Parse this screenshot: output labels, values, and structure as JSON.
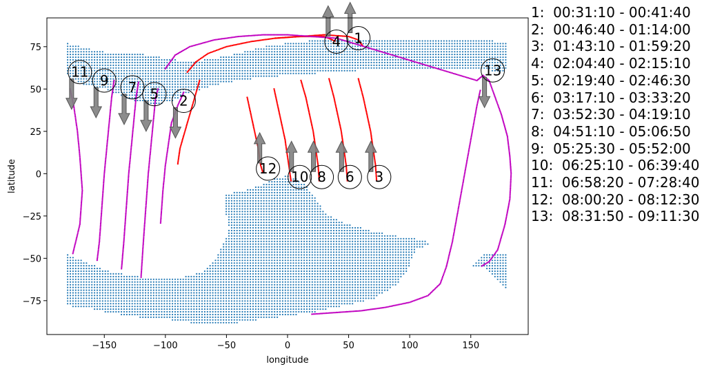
{
  "chart_data": {
    "type": "scatter",
    "title": "",
    "xlabel": "longitude",
    "ylabel": "latitude",
    "xlim": [
      -197,
      197
    ],
    "ylim": [
      -95,
      92
    ],
    "xticks": [
      -150,
      -100,
      -50,
      0,
      50,
      100,
      150
    ],
    "yticks": [
      -75,
      -50,
      -25,
      0,
      25,
      50,
      75
    ],
    "xtick_labels": [
      "−150",
      "−100",
      "−50",
      "0",
      "50",
      "100",
      "150"
    ],
    "ytick_labels": [
      "−75",
      "−50",
      "−25",
      "0",
      "25",
      "50",
      "75"
    ],
    "grid": false,
    "colors": {
      "coverage": "#1f77b4",
      "track_red": "#ff0000",
      "track_magenta": "#c000c0",
      "arrow": "#808080"
    },
    "coverage_region": {
      "description_units": "lon/lat polygons of blue point grid",
      "north": [
        [
          -180,
          77
        ],
        [
          -170,
          75
        ],
        [
          -150,
          72
        ],
        [
          -130,
          71
        ],
        [
          -110,
          70
        ],
        [
          -100,
          68
        ],
        [
          -90,
          67
        ],
        [
          -80,
          66
        ],
        [
          -60,
          68
        ],
        [
          -40,
          71
        ],
        [
          -25,
          74
        ],
        [
          -20,
          75
        ],
        [
          -10,
          76
        ],
        [
          0,
          77
        ],
        [
          10,
          78
        ],
        [
          30,
          79
        ],
        [
          60,
          79
        ],
        [
          90,
          79
        ],
        [
          120,
          79
        ],
        [
          150,
          79
        ],
        [
          180,
          78
        ],
        [
          180,
          62
        ],
        [
          175,
          60
        ],
        [
          170,
          60
        ],
        [
          163,
          62
        ],
        [
          150,
          62
        ],
        [
          120,
          62
        ],
        [
          90,
          62
        ],
        [
          60,
          61
        ],
        [
          40,
          60
        ],
        [
          20,
          59
        ],
        [
          0,
          58
        ],
        [
          -20,
          57
        ],
        [
          -40,
          55
        ],
        [
          -60,
          52
        ],
        [
          -80,
          48
        ],
        [
          -90,
          44
        ],
        [
          -100,
          42
        ],
        [
          -110,
          40
        ],
        [
          -120,
          42
        ],
        [
          -130,
          44
        ],
        [
          -140,
          47
        ],
        [
          -150,
          50
        ],
        [
          -165,
          52
        ],
        [
          -175,
          55
        ],
        [
          -180,
          58
        ]
      ],
      "south": [
        [
          -50,
          -12
        ],
        [
          -35,
          -10
        ],
        [
          -20,
          -6
        ],
        [
          -10,
          -3
        ],
        [
          0,
          -1
        ],
        [
          8,
          -3
        ],
        [
          15,
          -7
        ],
        [
          20,
          -12
        ],
        [
          25,
          -17
        ],
        [
          30,
          -22
        ],
        [
          35,
          -25
        ],
        [
          45,
          -29
        ],
        [
          55,
          -31
        ],
        [
          70,
          -34
        ],
        [
          90,
          -37
        ],
        [
          100,
          -38
        ],
        [
          110,
          -39
        ],
        [
          118,
          -41
        ],
        [
          105,
          -45
        ],
        [
          102,
          -50
        ],
        [
          100,
          -55
        ],
        [
          95,
          -60
        ],
        [
          90,
          -65
        ],
        [
          80,
          -70
        ],
        [
          70,
          -74
        ],
        [
          60,
          -76
        ],
        [
          40,
          -79
        ],
        [
          20,
          -82
        ],
        [
          0,
          -84
        ],
        [
          -20,
          -86
        ],
        [
          -40,
          -88
        ],
        [
          -60,
          -88
        ],
        [
          -80,
          -88
        ],
        [
          -100,
          -86
        ],
        [
          -120,
          -85
        ],
        [
          -140,
          -83
        ],
        [
          -160,
          -80
        ],
        [
          -180,
          -78
        ],
        [
          -180,
          -48
        ],
        [
          -165,
          -52
        ],
        [
          -150,
          -57
        ],
        [
          -130,
          -60
        ],
        [
          -110,
          -62
        ],
        [
          -90,
          -62
        ],
        [
          -70,
          -58
        ],
        [
          -60,
          -52
        ],
        [
          -55,
          -45
        ],
        [
          -50,
          -38
        ],
        [
          -48,
          -32
        ],
        [
          -50,
          -25
        ],
        [
          -52,
          -18
        ]
      ],
      "east_strip": [
        [
          150,
          -55
        ],
        [
          160,
          -48
        ],
        [
          180,
          -48
        ],
        [
          180,
          -68
        ],
        [
          175,
          -66
        ],
        [
          165,
          -58
        ],
        [
          160,
          -55
        ]
      ]
    },
    "series": [
      {
        "id": "1",
        "color": "red",
        "label_at": [
          58,
          80
        ],
        "arrow": "up",
        "points": [
          [
            -82,
            60
          ],
          [
            -75,
            66
          ],
          [
            -65,
            71
          ],
          [
            -50,
            75
          ],
          [
            -30,
            78
          ],
          [
            -10,
            80
          ],
          [
            10,
            81
          ],
          [
            30,
            82
          ],
          [
            50,
            81
          ],
          [
            58,
            79
          ],
          [
            62,
            75
          ]
        ]
      },
      {
        "id": "2",
        "color": "red",
        "label_at": [
          -85,
          43
        ],
        "arrow": "down",
        "points": [
          [
            -72,
            55
          ],
          [
            -76,
            45
          ],
          [
            -80,
            35
          ],
          [
            -84,
            25
          ],
          [
            -88,
            15
          ],
          [
            -90,
            5
          ]
        ]
      },
      {
        "id": "3",
        "color": "red",
        "label_at": [
          75,
          -2
        ],
        "arrow": "up",
        "points": [
          [
            58,
            56
          ],
          [
            62,
            45
          ],
          [
            65,
            35
          ],
          [
            68,
            25
          ],
          [
            70,
            15
          ],
          [
            72,
            5
          ],
          [
            73,
            -5
          ]
        ]
      },
      {
        "id": "4",
        "color": "red",
        "label_at": [
          40,
          78
        ],
        "arrow": "up",
        "points": [
          [
            -10,
            80
          ],
          [
            10,
            81
          ],
          [
            30,
            81
          ],
          [
            40,
            78
          ]
        ]
      },
      {
        "id": "5",
        "color": "magenta",
        "label_at": [
          -109,
          47
        ],
        "arrow": "down",
        "points": [
          [
            -106,
            50
          ],
          [
            -108,
            45
          ],
          [
            -110,
            30
          ],
          [
            -112,
            15
          ],
          [
            -114,
            0
          ],
          [
            -116,
            -20
          ],
          [
            -118,
            -40
          ],
          [
            -120,
            -62
          ]
        ]
      },
      {
        "id": "6",
        "color": "red",
        "label_at": [
          51,
          -2
        ],
        "arrow": "up",
        "points": [
          [
            34,
            56
          ],
          [
            38,
            45
          ],
          [
            41,
            35
          ],
          [
            44,
            25
          ],
          [
            46,
            15
          ],
          [
            48,
            5
          ],
          [
            49,
            -5
          ]
        ]
      },
      {
        "id": "7",
        "color": "magenta",
        "label_at": [
          -127,
          51
        ],
        "arrow": "down",
        "points": [
          [
            -122,
            54
          ],
          [
            -124,
            45
          ],
          [
            -126,
            30
          ],
          [
            -128,
            15
          ],
          [
            -130,
            0
          ],
          [
            -132,
            -20
          ],
          [
            -134,
            -40
          ],
          [
            -136,
            -57
          ]
        ]
      },
      {
        "id": "8",
        "color": "red",
        "label_at": [
          28,
          -2
        ],
        "arrow": "up",
        "points": [
          [
            11,
            55
          ],
          [
            15,
            45
          ],
          [
            18,
            35
          ],
          [
            21,
            25
          ],
          [
            23,
            15
          ],
          [
            25,
            5
          ],
          [
            26,
            -5
          ]
        ]
      },
      {
        "id": "9",
        "color": "magenta",
        "label_at": [
          -150,
          55
        ],
        "arrow": "down",
        "points": [
          [
            -142,
            55
          ],
          [
            -144,
            45
          ],
          [
            -146,
            30
          ],
          [
            -148,
            15
          ],
          [
            -150,
            0
          ],
          [
            -152,
            -20
          ],
          [
            -154,
            -40
          ],
          [
            -156,
            -52
          ]
        ]
      },
      {
        "id": "10",
        "color": "red",
        "label_at": [
          10,
          -2
        ],
        "arrow": "up",
        "points": [
          [
            -11,
            50
          ],
          [
            -8,
            40
          ],
          [
            -5,
            30
          ],
          [
            -2,
            20
          ],
          [
            0,
            10
          ],
          [
            2,
            0
          ],
          [
            3,
            -5
          ]
        ]
      },
      {
        "id": "11",
        "color": "magenta",
        "label_at": [
          -170,
          60
        ],
        "arrow": "down",
        "points": [
          [
            -178,
            50
          ],
          [
            -175,
            40
          ],
          [
            -172,
            25
          ],
          [
            -170,
            10
          ],
          [
            -168,
            -10
          ],
          [
            -170,
            -30
          ],
          [
            -176,
            -48
          ]
        ]
      },
      {
        "id": "12",
        "color": "red",
        "label_at": [
          -16,
          3
        ],
        "arrow": "up",
        "points": [
          [
            -33,
            45
          ],
          [
            -30,
            35
          ],
          [
            -27,
            25
          ],
          [
            -24,
            15
          ],
          [
            -22,
            5
          ],
          [
            -20,
            0
          ]
        ]
      },
      {
        "id": "13",
        "color": "magenta",
        "label_at": [
          168,
          61
        ],
        "arrow": "down",
        "points": [
          [
            -100,
            62
          ],
          [
            -92,
            70
          ],
          [
            -80,
            75
          ],
          [
            -60,
            79
          ],
          [
            -40,
            81
          ],
          [
            -20,
            82
          ],
          [
            0,
            82
          ],
          [
            20,
            81
          ],
          [
            40,
            80
          ],
          [
            155,
            55
          ],
          [
            160,
            58
          ],
          [
            165,
            55
          ],
          [
            170,
            45
          ],
          [
            175,
            35
          ],
          [
            180,
            22
          ],
          [
            182,
            10
          ],
          [
            183,
            0
          ],
          [
            182,
            -15
          ],
          [
            178,
            -30
          ],
          [
            172,
            -45
          ],
          [
            165,
            -52
          ],
          [
            158,
            -55
          ]
        ]
      }
    ],
    "extra_tracks": [
      {
        "color": "magenta",
        "points": [
          [
            20,
            -83
          ],
          [
            40,
            -82
          ],
          [
            60,
            -81
          ],
          [
            80,
            -79
          ],
          [
            100,
            -76
          ],
          [
            115,
            -72
          ],
          [
            125,
            -65
          ],
          [
            130,
            -55
          ],
          [
            135,
            -40
          ],
          [
            140,
            -20
          ],
          [
            145,
            0
          ],
          [
            150,
            20
          ],
          [
            155,
            40
          ],
          [
            158,
            50
          ]
        ]
      },
      {
        "color": "magenta",
        "points": [
          [
            -85,
            48
          ],
          [
            -90,
            40
          ],
          [
            -95,
            30
          ],
          [
            -97,
            20
          ],
          [
            -100,
            5
          ],
          [
            -102,
            -10
          ],
          [
            -104,
            -30
          ]
        ]
      }
    ]
  },
  "legend": [
    "1:  00:31:10 - 00:41:40",
    "2:  00:46:40 - 01:14:00",
    "3:  01:43:10 - 01:59:20",
    "4:  02:04:40 - 02:15:10",
    "5:  02:19:40 - 02:46:30",
    "6:  03:17:10 - 03:33:20",
    "7:  03:52:30 - 04:19:10",
    "8:  04:51:10 - 05:06:50",
    "9:  05:25:30 - 05:52:00",
    "10:  06:25:10 - 06:39:40",
    "11:  06:58:20 - 07:28:40",
    "12:  08:00:20 - 08:12:30",
    "13:  08:31:50 - 09:11:30"
  ]
}
